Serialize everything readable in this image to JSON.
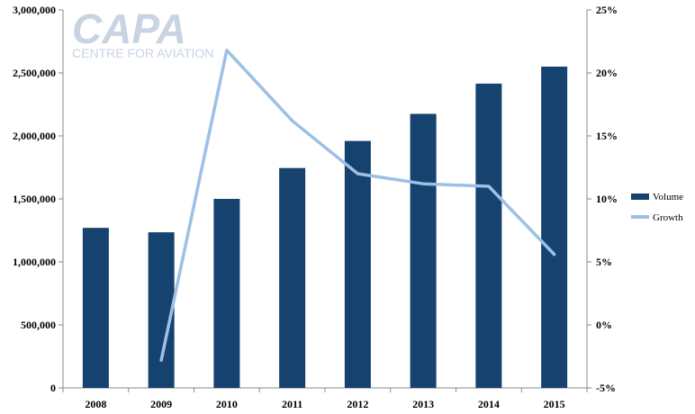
{
  "logo": {
    "main": "CAPA",
    "sub": "CENTRE FOR AVIATION"
  },
  "chart_data": {
    "type": "bar",
    "categories": [
      "2008",
      "2009",
      "2010",
      "2011",
      "2012",
      "2013",
      "2014",
      "2015"
    ],
    "series": [
      {
        "name": "Volume",
        "type": "bar",
        "axis": "left",
        "color": "#15426e",
        "values": [
          1270000,
          1235000,
          1500000,
          1745000,
          1960000,
          2175000,
          2415000,
          2550000
        ]
      },
      {
        "name": "Growth",
        "type": "line",
        "axis": "right",
        "color": "#9dc0e6",
        "values": [
          null,
          -2.8,
          21.8,
          16.2,
          12.0,
          11.2,
          11.0,
          5.6
        ]
      }
    ],
    "y_left": {
      "min": 0,
      "max": 3000000,
      "ticks": [
        0,
        500000,
        1000000,
        1500000,
        2000000,
        2500000,
        3000000
      ],
      "tick_labels": [
        "0",
        "500,000",
        "1,000,000",
        "1,500,000",
        "2,000,000",
        "2,500,000",
        "3,000,000"
      ]
    },
    "y_right": {
      "min": -5,
      "max": 25,
      "ticks": [
        -5,
        0,
        5,
        10,
        15,
        20,
        25
      ],
      "tick_labels": [
        "-5%",
        "0%",
        "5%",
        "10%",
        "15%",
        "20%",
        "25%"
      ]
    },
    "title": "",
    "xlabel": "",
    "ylabel": "",
    "grid": false,
    "legend": "right"
  }
}
